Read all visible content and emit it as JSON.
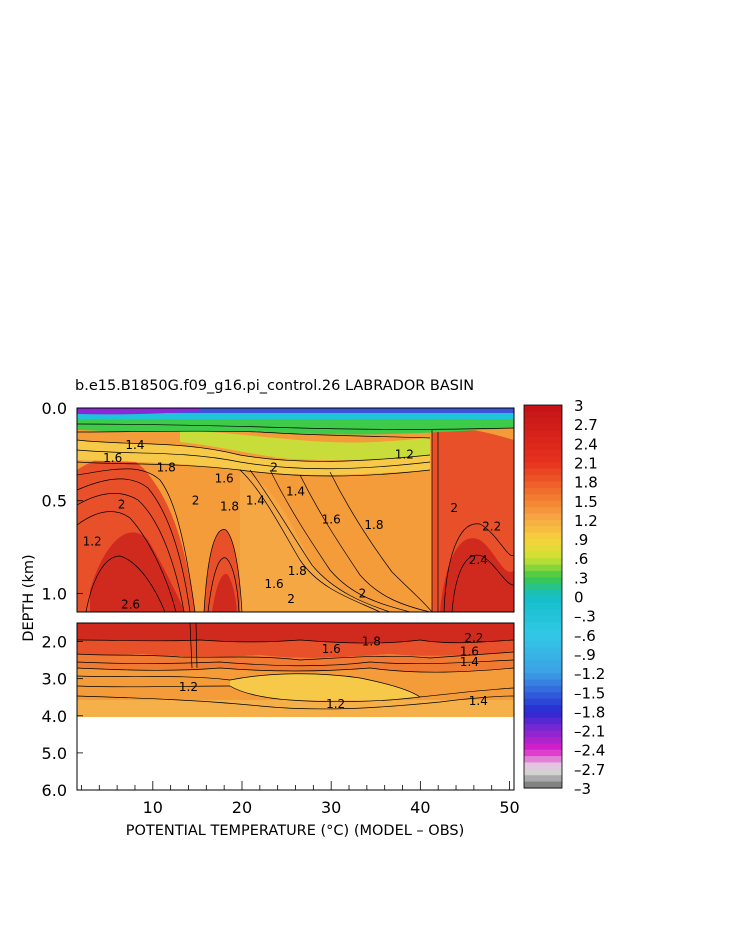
{
  "chart_data": {
    "type": "heatmap",
    "title": "b.e15.B1850G.f09_g16.pi_control.26 LABRADOR BASIN",
    "xlabel": "POTENTIAL TEMPERATURE (°C) (MODEL – OBS)",
    "ylabel": "DEPTH (km)",
    "xlim": [
      1.5,
      50.5
    ],
    "x_ticks": [
      {
        "label": "10",
        "value": 10
      },
      {
        "label": "20",
        "value": 20
      },
      {
        "label": "30",
        "value": 30
      },
      {
        "label": "40",
        "value": 40
      },
      {
        "label": "50",
        "value": 50
      }
    ],
    "upper_panel": {
      "ylim": [
        0.0,
        1.1
      ],
      "y_ticks": [
        {
          "label": "0.0",
          "value": 0.0
        },
        {
          "label": "0.5",
          "value": 0.5
        },
        {
          "label": "1.0",
          "value": 1.0
        }
      ]
    },
    "lower_panel": {
      "ylim": [
        1.5,
        6.0
      ],
      "data_bottom": 3.9,
      "y_ticks": [
        {
          "label": "2.0",
          "value": 2.0
        },
        {
          "label": "3.0",
          "value": 3.0
        },
        {
          "label": "4.0",
          "value": 4.0
        },
        {
          "label": "5.0",
          "value": 5.0
        },
        {
          "label": "6.0",
          "value": 6.0
        }
      ]
    },
    "colorbar": {
      "range": [
        -3,
        3
      ],
      "labels": [
        "3",
        "2.7",
        "2.4",
        "2.1",
        "1.8",
        "1.5",
        "1.2",
        ".9",
        ".6",
        ".3",
        "0",
        "–.3",
        "–.6",
        "–.9",
        "–1.2",
        "–1.5",
        "–1.8",
        "–2.1",
        "–2.4",
        "–2.7",
        "–3"
      ]
    },
    "contour_labels": [
      {
        "text": "1.6",
        "x": 5.5,
        "y": 0.27
      },
      {
        "text": "1.4",
        "x": 8.0,
        "y": 0.2
      },
      {
        "text": "1.8",
        "x": 11.5,
        "y": 0.32
      },
      {
        "text": "2",
        "x": 6.5,
        "y": 0.52
      },
      {
        "text": "2",
        "x": 14.8,
        "y": 0.5
      },
      {
        "text": "1.2",
        "x": 3.2,
        "y": 0.72
      },
      {
        "text": "2.6",
        "x": 7.5,
        "y": 1.06
      },
      {
        "text": "1.6",
        "x": 18.0,
        "y": 0.38
      },
      {
        "text": "1.8",
        "x": 18.6,
        "y": 0.53
      },
      {
        "text": "1.4",
        "x": 21.5,
        "y": 0.5
      },
      {
        "text": "2",
        "x": 23.6,
        "y": 0.32
      },
      {
        "text": "1.4",
        "x": 26.0,
        "y": 0.45
      },
      {
        "text": "1.6",
        "x": 23.6,
        "y": 0.95
      },
      {
        "text": "1.8",
        "x": 26.2,
        "y": 0.88
      },
      {
        "text": "2",
        "x": 25.5,
        "y": 1.03
      },
      {
        "text": "1.6",
        "x": 30.0,
        "y": 0.6
      },
      {
        "text": "1.8",
        "x": 34.8,
        "y": 0.63
      },
      {
        "text": "2",
        "x": 33.5,
        "y": 1.0
      },
      {
        "text": "1.2",
        "x": 38.2,
        "y": 0.25
      },
      {
        "text": "2",
        "x": 43.8,
        "y": 0.54
      },
      {
        "text": "2.2",
        "x": 48.0,
        "y": 0.64
      },
      {
        "text": "2.4",
        "x": 46.5,
        "y": 0.82
      },
      {
        "text": "1.8",
        "x": 34.5,
        "y": 2.0
      },
      {
        "text": "1.6",
        "x": 30.0,
        "y": 2.2
      },
      {
        "text": "2.2",
        "x": 46.0,
        "y": 1.9
      },
      {
        "text": "1.6",
        "x": 45.5,
        "y": 2.27
      },
      {
        "text": "1.4",
        "x": 45.5,
        "y": 2.55
      },
      {
        "text": "1.2",
        "x": 14.0,
        "y": 3.22
      },
      {
        "text": "1.2",
        "x": 30.5,
        "y": 3.68
      },
      {
        "text": "1.4",
        "x": 46.5,
        "y": 3.6
      }
    ]
  }
}
